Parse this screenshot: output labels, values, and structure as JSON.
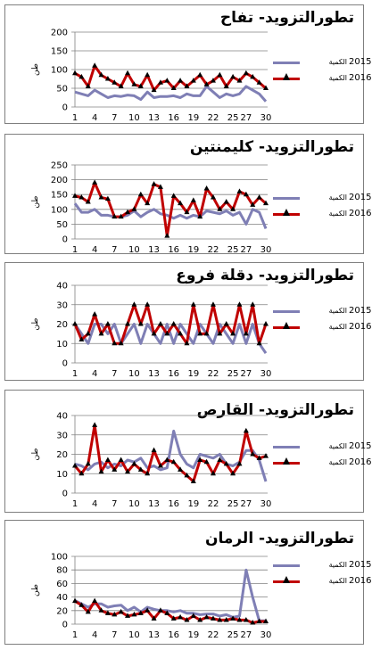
{
  "chart_data": [
    {
      "type": "line",
      "title": "تطورالتزويد- تفاح",
      "ylabel": "طن",
      "ylim": [
        0,
        200
      ],
      "yticks": [
        0,
        50,
        100,
        150,
        200
      ],
      "x": [
        1,
        2,
        3,
        4,
        5,
        6,
        7,
        8,
        9,
        10,
        11,
        12,
        13,
        14,
        15,
        16,
        17,
        18,
        19,
        20,
        21,
        22,
        23,
        24,
        25,
        26,
        27,
        28,
        29,
        30
      ],
      "xtick_labels": [
        "1",
        "4",
        "7",
        "10",
        "13",
        "16",
        "19",
        "22",
        "25",
        "27",
        "30"
      ],
      "grid": true,
      "legend_position": "right",
      "series": [
        {
          "name": "الكمية",
          "year": "2015",
          "color": "#7f7fb5",
          "marker": "none",
          "values": [
            40,
            35,
            30,
            45,
            35,
            25,
            30,
            28,
            32,
            30,
            20,
            40,
            25,
            28,
            28,
            30,
            25,
            35,
            30,
            30,
            55,
            40,
            25,
            35,
            30,
            35,
            55,
            45,
            35,
            15
          ]
        },
        {
          "name": "الكمية",
          "year": "2016",
          "color": "#c00000",
          "marker": "triangle",
          "values": [
            90,
            80,
            55,
            110,
            85,
            75,
            65,
            55,
            90,
            60,
            55,
            85,
            45,
            65,
            70,
            50,
            70,
            55,
            70,
            85,
            60,
            70,
            85,
            55,
            80,
            70,
            90,
            80,
            65,
            50
          ]
        }
      ]
    },
    {
      "type": "line",
      "title": "تطورالتزويد- كليمنتين",
      "ylabel": "طن",
      "ylim": [
        0,
        250
      ],
      "yticks": [
        0,
        50,
        100,
        150,
        200,
        250
      ],
      "x": [
        1,
        2,
        3,
        4,
        5,
        6,
        7,
        8,
        9,
        10,
        11,
        12,
        13,
        14,
        15,
        16,
        17,
        18,
        19,
        20,
        21,
        22,
        23,
        24,
        25,
        26,
        27,
        28,
        29,
        30
      ],
      "xtick_labels": [
        "1",
        "4",
        "7",
        "10",
        "13",
        "16",
        "19",
        "22",
        "25",
        "27",
        "30"
      ],
      "grid": true,
      "legend_position": "right",
      "series": [
        {
          "name": "الكمية",
          "year": "2015",
          "color": "#7f7fb5",
          "marker": "none",
          "values": [
            120,
            90,
            90,
            100,
            80,
            80,
            75,
            75,
            80,
            95,
            75,
            90,
            100,
            85,
            80,
            70,
            80,
            70,
            80,
            75,
            95,
            90,
            85,
            95,
            80,
            90,
            50,
            100,
            90,
            35
          ]
        },
        {
          "name": "الكمية",
          "year": "2016",
          "color": "#c00000",
          "marker": "triangle",
          "values": [
            145,
            140,
            125,
            190,
            140,
            135,
            75,
            75,
            90,
            100,
            150,
            120,
            185,
            175,
            10,
            145,
            120,
            90,
            130,
            75,
            170,
            140,
            100,
            125,
            100,
            160,
            150,
            115,
            140,
            120
          ]
        }
      ]
    },
    {
      "type": "line",
      "title": "تطورالتزويد- دقلة فروع",
      "ylabel": "طن",
      "ylim": [
        0,
        40
      ],
      "yticks": [
        0,
        10,
        20,
        30,
        40
      ],
      "x": [
        1,
        2,
        3,
        4,
        5,
        6,
        7,
        8,
        9,
        10,
        11,
        12,
        13,
        14,
        15,
        16,
        17,
        18,
        19,
        20,
        21,
        22,
        23,
        24,
        25,
        26,
        27,
        28,
        29,
        30
      ],
      "xtick_labels": [
        "1",
        "4",
        "7",
        "10",
        "13",
        "16",
        "19",
        "22",
        "25",
        "27",
        "30"
      ],
      "grid": true,
      "legend_position": "right",
      "series": [
        {
          "name": "الكمية",
          "year": "2015",
          "color": "#7f7fb5",
          "marker": "none",
          "values": [
            20,
            15,
            10,
            20,
            20,
            15,
            20,
            10,
            15,
            20,
            10,
            20,
            15,
            10,
            20,
            10,
            20,
            15,
            10,
            20,
            15,
            10,
            20,
            15,
            10,
            20,
            10,
            20,
            10,
            5
          ]
        },
        {
          "name": "الكمية",
          "year": "2016",
          "color": "#c00000",
          "marker": "triangle",
          "values": [
            20,
            12,
            15,
            25,
            15,
            20,
            10,
            10,
            20,
            30,
            20,
            30,
            15,
            20,
            15,
            20,
            15,
            10,
            30,
            15,
            15,
            30,
            15,
            20,
            15,
            30,
            15,
            30,
            10,
            20
          ]
        }
      ]
    },
    {
      "type": "line",
      "title": "تطورالتزويد- القارص",
      "ylabel": "طن",
      "ylim": [
        0,
        40
      ],
      "yticks": [
        0,
        10,
        20,
        30,
        40
      ],
      "x": [
        1,
        2,
        3,
        4,
        5,
        6,
        7,
        8,
        9,
        10,
        11,
        12,
        13,
        14,
        15,
        16,
        17,
        18,
        19,
        20,
        21,
        22,
        23,
        24,
        25,
        26,
        27,
        28,
        29,
        30
      ],
      "xtick_labels": [
        "1",
        "4",
        "7",
        "10",
        "13",
        "16",
        "19",
        "22",
        "25",
        "27",
        "30"
      ],
      "grid": true,
      "legend_position": "right",
      "series": [
        {
          "name": "الكمية",
          "year": "2015",
          "color": "#7f7fb5",
          "marker": "none",
          "values": [
            15,
            14,
            12,
            15,
            16,
            13,
            15,
            14,
            17,
            16,
            18,
            13,
            14,
            12,
            13,
            32,
            20,
            15,
            13,
            20,
            19,
            18,
            20,
            15,
            14,
            16,
            22,
            22,
            17,
            6
          ]
        },
        {
          "name": "الكمية",
          "year": "2016",
          "color": "#c00000",
          "marker": "triangle",
          "values": [
            14,
            10,
            15,
            35,
            11,
            17,
            12,
            17,
            11,
            15,
            12,
            10,
            22,
            14,
            17,
            16,
            12,
            9,
            6,
            17,
            16,
            10,
            17,
            15,
            10,
            15,
            32,
            20,
            18,
            19
          ]
        }
      ]
    },
    {
      "type": "line",
      "title": "تطورالتزويد- الرمان",
      "ylabel": "طن",
      "ylim": [
        0,
        100
      ],
      "yticks": [
        0,
        20,
        40,
        60,
        80,
        100
      ],
      "x": [
        1,
        2,
        3,
        4,
        5,
        6,
        7,
        8,
        9,
        10,
        11,
        12,
        13,
        14,
        15,
        16,
        17,
        18,
        19,
        20,
        21,
        22,
        23,
        24,
        25,
        26,
        27,
        28,
        29,
        30
      ],
      "xtick_labels": [
        "1",
        "4",
        "7",
        "10",
        "13",
        "16",
        "19",
        "22",
        "25",
        "27",
        "30"
      ],
      "grid": true,
      "legend_position": "right",
      "series": [
        {
          "name": "الكمية",
          "year": "2015",
          "color": "#7f7fb5",
          "marker": "none",
          "values": [
            35,
            30,
            25,
            30,
            30,
            25,
            27,
            28,
            20,
            25,
            18,
            25,
            22,
            20,
            20,
            18,
            20,
            16,
            16,
            14,
            15,
            15,
            12,
            14,
            10,
            12,
            80,
            40,
            5,
            5
          ]
        },
        {
          "name": "الكمية",
          "year": "2016",
          "color": "#c00000",
          "marker": "triangle",
          "values": [
            34,
            28,
            18,
            34,
            20,
            16,
            14,
            18,
            12,
            14,
            16,
            20,
            8,
            20,
            16,
            8,
            10,
            6,
            12,
            6,
            10,
            8,
            6,
            6,
            8,
            6,
            6,
            2,
            4,
            4
          ]
        }
      ]
    }
  ]
}
